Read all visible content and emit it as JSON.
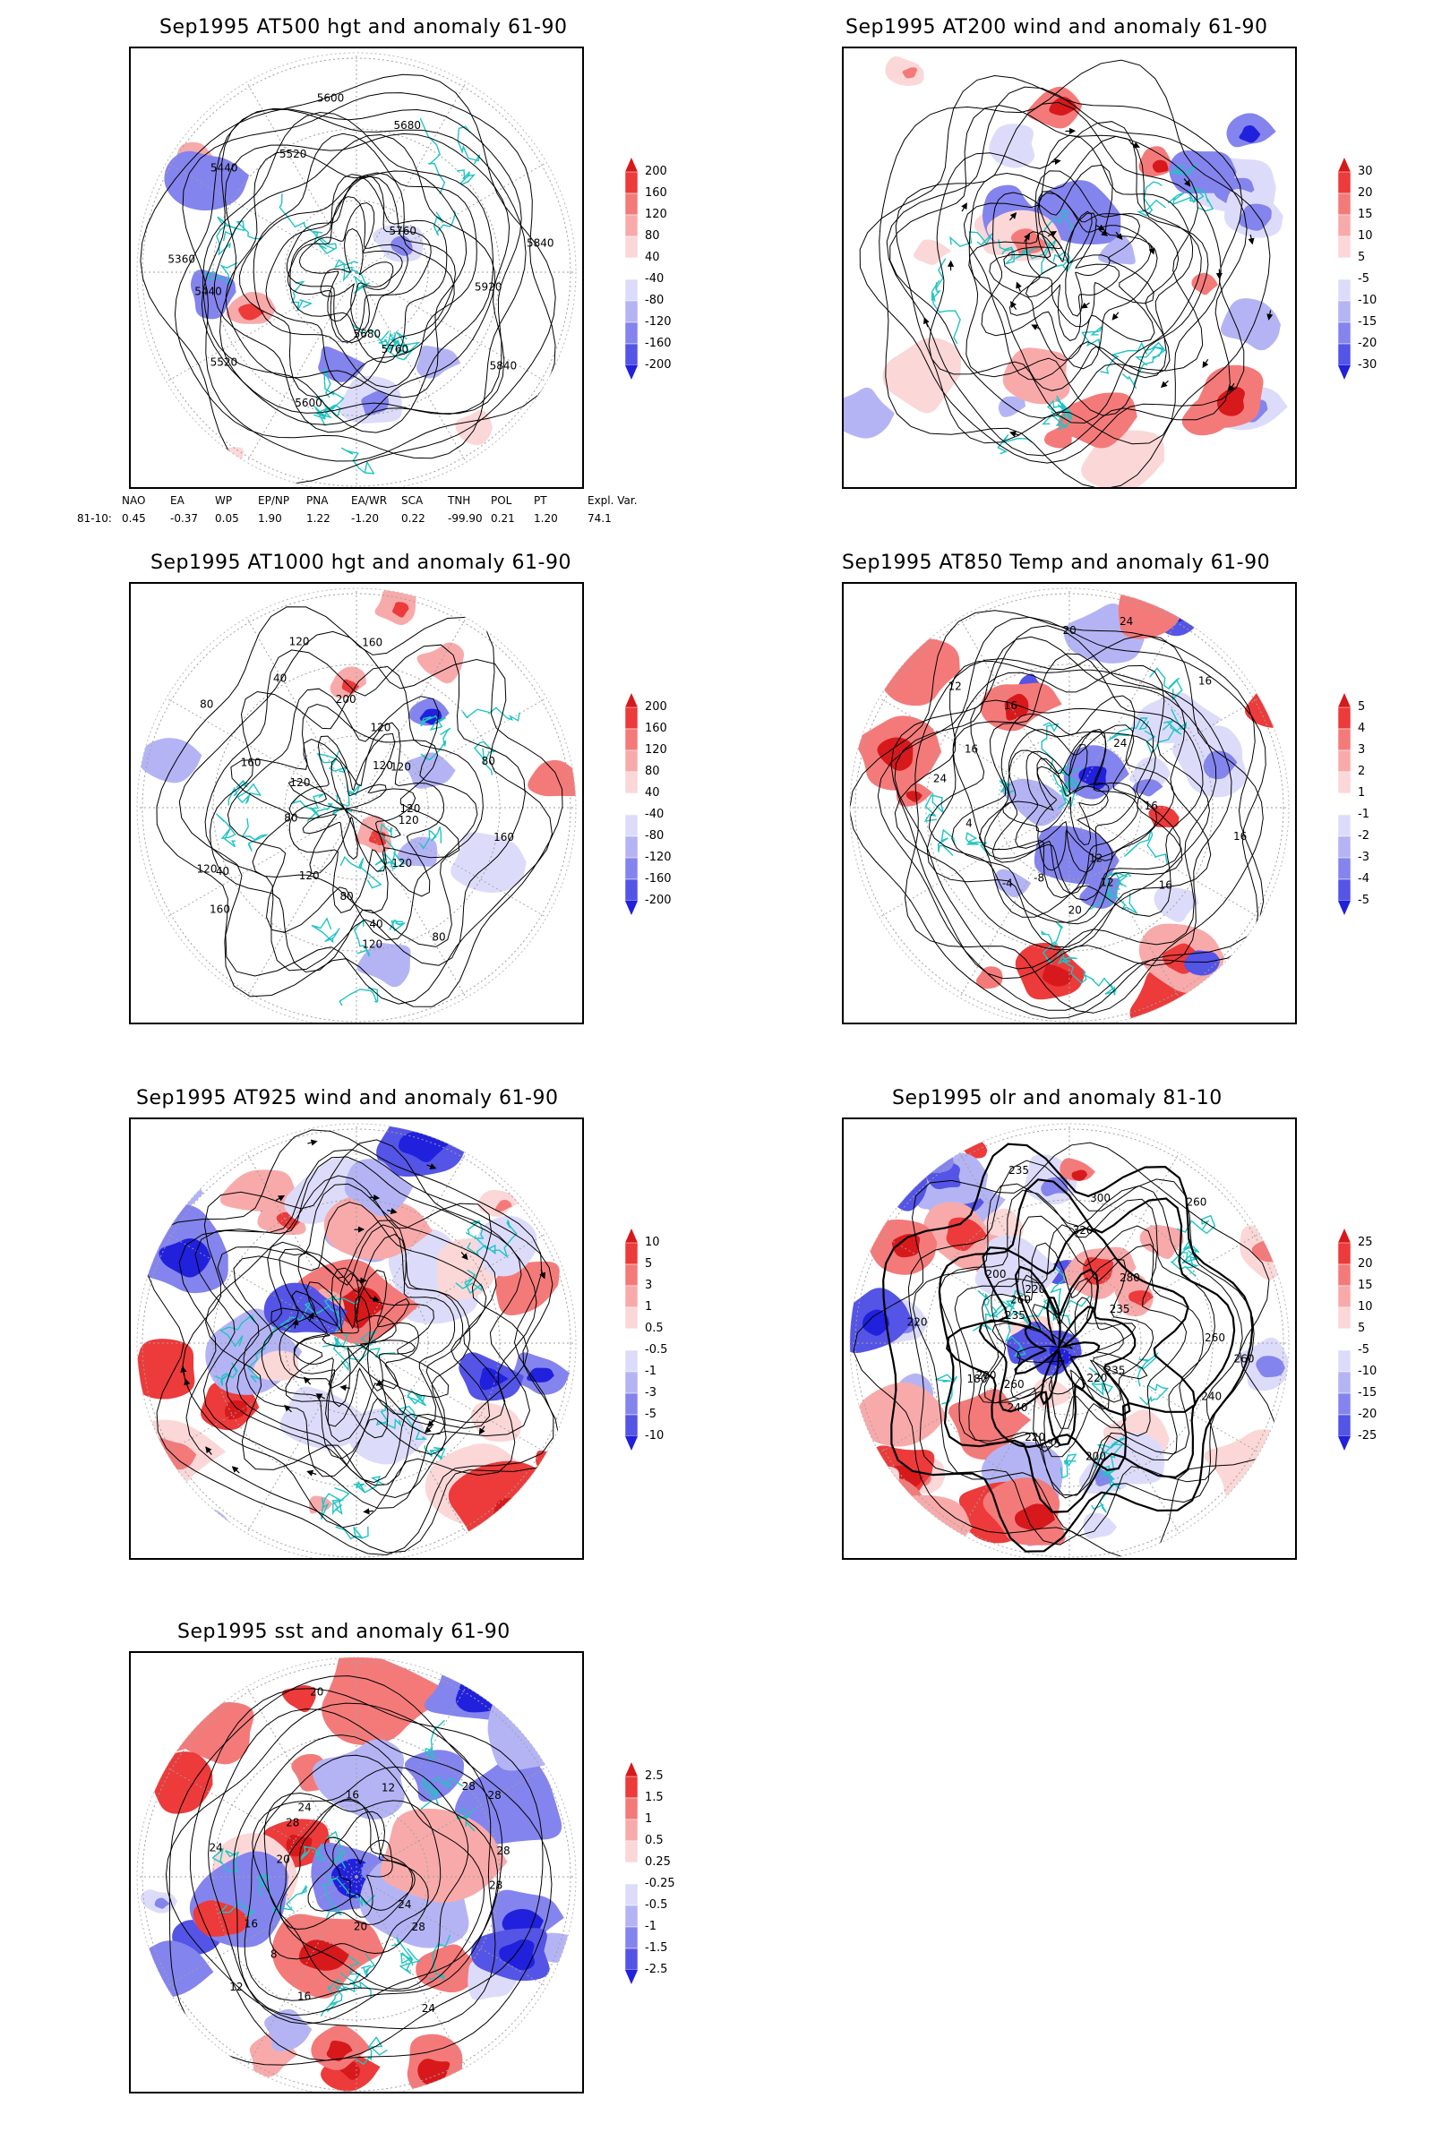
{
  "panels": [
    {
      "id": "p500",
      "title": "Sep1995 AT500 hgt and anomaly 61-90",
      "colorbar": [
        "200",
        "160",
        "120",
        "80",
        "40",
        "-40",
        "-80",
        "-120",
        "-160",
        "-200"
      ],
      "contour_labels": [
        "5920",
        "5840",
        "5760",
        "5680",
        "5600",
        "5520",
        "5440",
        "5360",
        "5440",
        "5520",
        "5600",
        "5680",
        "5760",
        "5840"
      ],
      "indices": {
        "headers": [
          "NAO",
          "EA",
          "WP",
          "EP/NP",
          "PNA",
          "EA/WR",
          "SCA",
          "TNH",
          "POL",
          "PT",
          "Expl. Var."
        ],
        "row_label": "81-10:",
        "values": [
          "0.45",
          "-0.37",
          "0.05",
          "1.90",
          "1.22",
          "-1.20",
          "0.22",
          "-99.90",
          "0.21",
          "1.20",
          "74.1"
        ]
      }
    },
    {
      "id": "p200",
      "title": "Sep1995 AT200 wind and anomaly 61-90",
      "colorbar": [
        "30",
        "20",
        "15",
        "10",
        "5",
        "-5",
        "-10",
        "-15",
        "-20",
        "-30"
      ],
      "contour_labels": []
    },
    {
      "id": "p1000",
      "title": "Sep1995 AT1000 hgt and anomaly 61-90",
      "colorbar": [
        "200",
        "160",
        "120",
        "80",
        "40",
        "-40",
        "-80",
        "-120",
        "-160",
        "-200"
      ],
      "contour_labels": [
        "160",
        "120",
        "120",
        "80",
        "40",
        "120",
        "80",
        "120",
        "160",
        "120",
        "40",
        "80",
        "160",
        "120",
        "80",
        "40",
        "120",
        "200",
        "160",
        "120",
        "120",
        "120",
        "80",
        "120"
      ]
    },
    {
      "id": "p850",
      "title": "Sep1995 AT850 Temp and anomaly 61-90",
      "colorbar": [
        "5",
        "4",
        "3",
        "2",
        "1",
        "-1",
        "-2",
        "-3",
        "-4",
        "-5"
      ],
      "contour_labels": [
        "16",
        "16",
        "12",
        "12",
        "20",
        "-8",
        "-4",
        "4",
        "24",
        "16",
        "12",
        "16",
        "20",
        "24",
        "24",
        "16",
        "16"
      ]
    },
    {
      "id": "p925",
      "title": "Sep1995 AT925 wind and anomaly 61-90",
      "colorbar": [
        "10",
        "5",
        "3",
        "1",
        "0.5",
        "-0.5",
        "-1",
        "-3",
        "-5",
        "-10"
      ],
      "contour_labels": []
    },
    {
      "id": "polr",
      "title": "Sep1995 olr and anomaly 81-10",
      "colorbar": [
        "25",
        "20",
        "15",
        "10",
        "5",
        "-5",
        "-10",
        "-15",
        "-20",
        "-25"
      ],
      "contour_labels": [
        "260",
        "240",
        "235",
        "220",
        "200",
        "235",
        "220",
        "240",
        "260",
        "200",
        "180",
        "220",
        "235",
        "260",
        "200",
        "220",
        "235",
        "320",
        "300",
        "260",
        "280",
        "235",
        "260"
      ]
    },
    {
      "id": "psst",
      "title": "Sep1995 sst and anomaly 61-90",
      "colorbar": [
        "2.5",
        "1.5",
        "1",
        "0.5",
        "0.25",
        "-0.25",
        "-0.5",
        "-1",
        "-1.5",
        "-2.5"
      ],
      "contour_labels": [
        "28",
        "24",
        "28",
        "24",
        "20",
        "16",
        "12",
        "8",
        "16",
        "20",
        "24",
        "28",
        "24",
        "20",
        "16",
        "12",
        "28",
        "28",
        "28"
      ]
    }
  ],
  "colors": {
    "coast": "#20c4c4",
    "contour": "#000000",
    "pos": [
      "#d7191c",
      "#ed3a3a",
      "#f47a7a",
      "#f8aaaa",
      "#fbd7d7"
    ],
    "neg": [
      "#dcdcfa",
      "#b4b4f5",
      "#8484ee",
      "#5454e6",
      "#2020dd"
    ]
  }
}
